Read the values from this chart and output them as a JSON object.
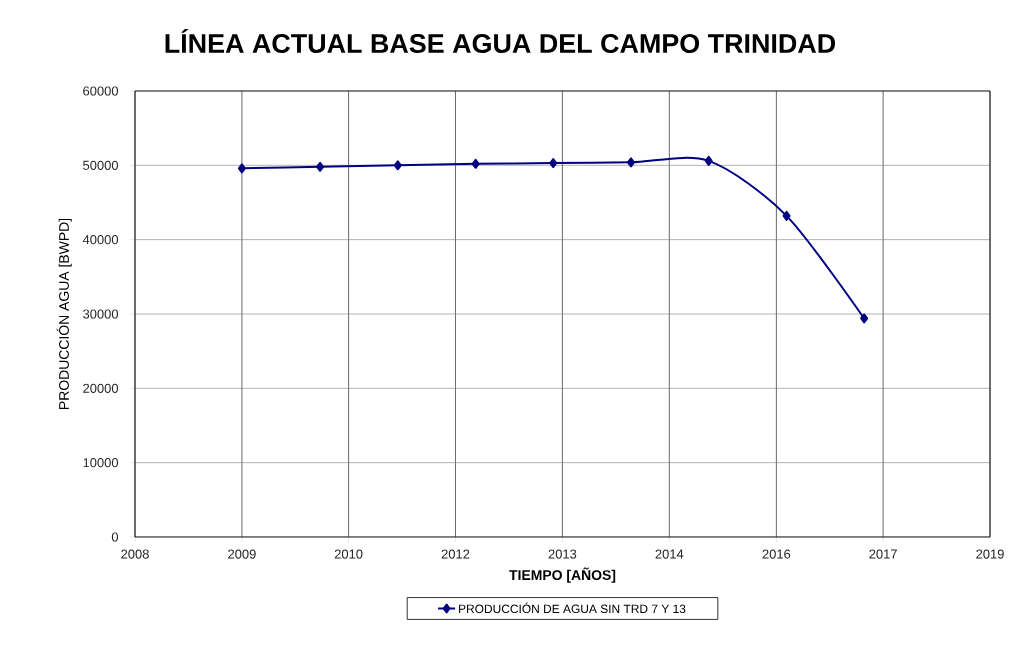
{
  "chart_data": {
    "type": "line",
    "title": "LÍNEA ACTUAL BASE AGUA DEL CAMPO TRINIDAD",
    "xlabel": "TIEMPO [AÑOS]",
    "ylabel": "PRODUCCIÓN AGUA [BWPD]",
    "x": [
      "2009-05-18",
      "2010-05-20",
      "2011-05-20",
      "2012-05-20",
      "2013-05-20",
      "2014-05-20",
      "2015-05-20",
      "2016-05-20",
      "2017-05-20"
    ],
    "series": [
      {
        "name": "PRODUCCIÓN DE AGUA SIN TRD 7 Y 13",
        "color": "#000080",
        "values": [
          49600,
          49800,
          50000,
          50200,
          50300,
          50400,
          50600,
          43200,
          29400
        ]
      }
    ],
    "xlim": [
      "2008-01-01",
      "2019-01-01"
    ],
    "ylim": [
      0,
      60000
    ],
    "xticks": [
      {
        "value": "2008-01-01",
        "label": "2008"
      },
      {
        "value": "2009-05-18",
        "label": "2009"
      },
      {
        "value": "2010-10-01",
        "label": "2010"
      },
      {
        "value": "2012-02-15",
        "label": "2012"
      },
      {
        "value": "2013-07-02",
        "label": "2013"
      },
      {
        "value": "2014-11-16",
        "label": "2014"
      },
      {
        "value": "2016-04-02",
        "label": "2016"
      },
      {
        "value": "2017-08-17",
        "label": "2017"
      },
      {
        "value": "2019-01-01",
        "label": "2019"
      }
    ],
    "yticks": [
      0,
      10000,
      20000,
      30000,
      40000,
      50000,
      60000
    ],
    "grid": true,
    "legend": "bottom",
    "marker": "diamond"
  }
}
